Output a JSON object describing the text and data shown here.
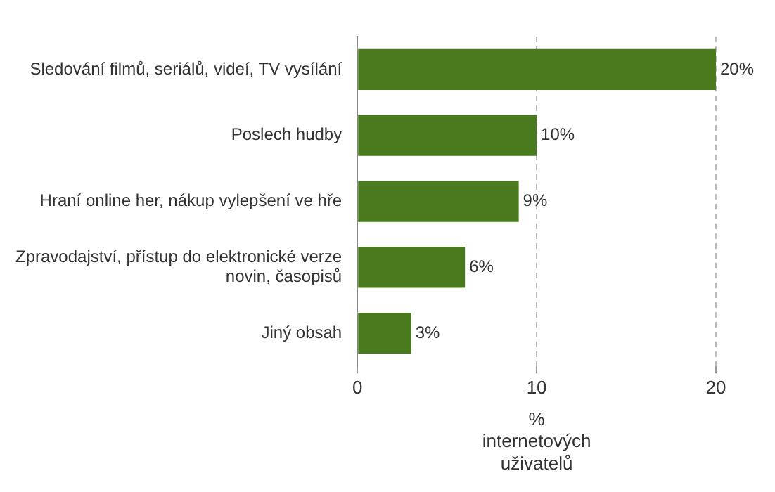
{
  "chart_data": {
    "type": "bar",
    "orientation": "horizontal",
    "categories": [
      "Sledování filmů, seriálů, videí, TV vysílání",
      "Poslech hudby",
      "Hraní online her, nákup vylepšení ve hře",
      "Zpravodajství, přístup do elektronické verze novin, časopisů",
      "Jiný obsah"
    ],
    "values": [
      20,
      10,
      9,
      6,
      3
    ],
    "value_labels": [
      "20%",
      "10%",
      "9%",
      "6%",
      "3%"
    ],
    "color": "#4a7a1e",
    "xlim": [
      0,
      20
    ],
    "xticks": [
      0,
      10,
      20
    ],
    "grid": "x",
    "legend": false,
    "xlabel": "% internetových uživatelů"
  }
}
